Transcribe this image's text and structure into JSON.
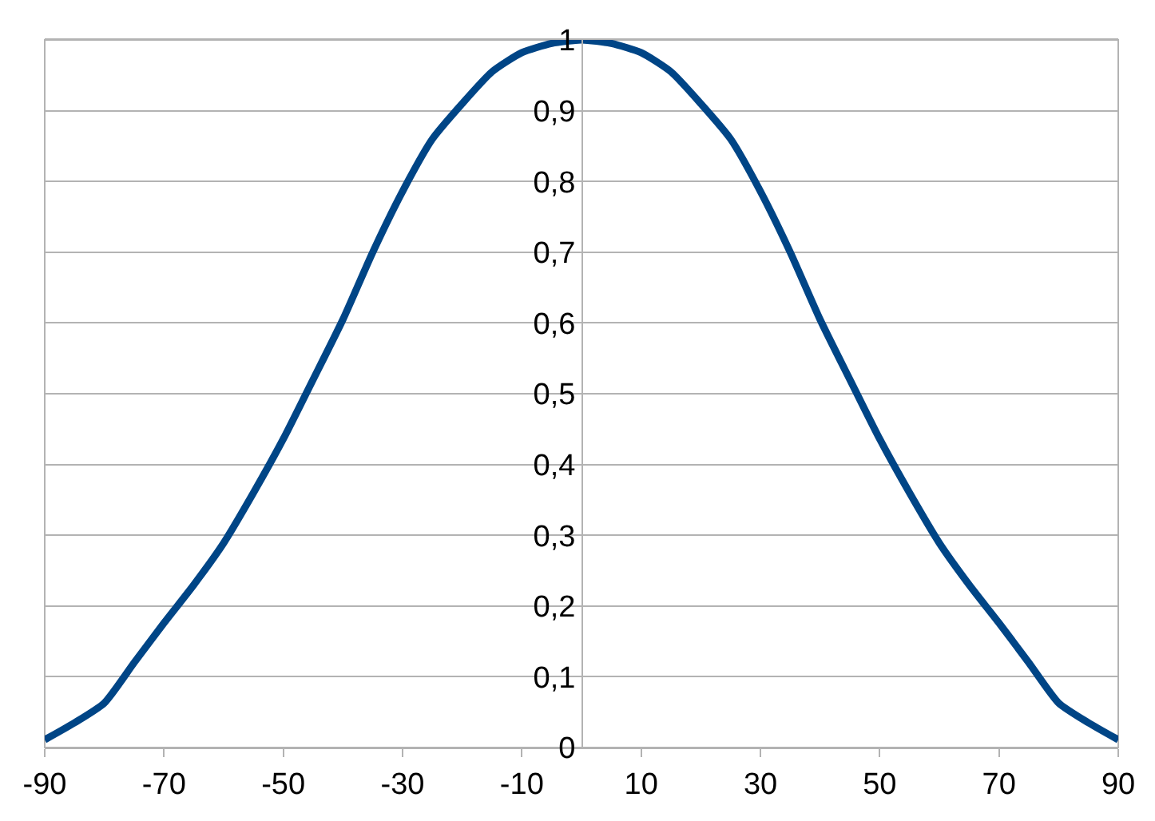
{
  "chart_data": {
    "type": "line",
    "x": [
      -90,
      -85,
      -80,
      -75,
      -70,
      -65,
      -60,
      -55,
      -50,
      -45,
      -40,
      -35,
      -30,
      -25,
      -20,
      -15,
      -10,
      -5,
      0,
      5,
      10,
      15,
      20,
      25,
      30,
      35,
      40,
      45,
      50,
      55,
      60,
      65,
      70,
      75,
      80,
      85,
      90
    ],
    "series": [
      {
        "color": "#004586",
        "values": [
          0.011,
          0.035,
          0.063,
          0.12,
          0.176,
          0.23,
          0.289,
          0.36,
          0.436,
          0.52,
          0.605,
          0.7,
          0.786,
          0.86,
          0.91,
          0.955,
          0.982,
          0.995,
          1.0,
          0.995,
          0.982,
          0.955,
          0.91,
          0.86,
          0.786,
          0.7,
          0.605,
          0.52,
          0.436,
          0.36,
          0.289,
          0.23,
          0.176,
          0.12,
          0.063,
          0.035,
          0.011
        ]
      }
    ],
    "xlim": [
      -90,
      90
    ],
    "xticks": [
      -90,
      -70,
      -50,
      -30,
      -10,
      10,
      30,
      50,
      70,
      90
    ],
    "ylim": [
      0,
      1
    ],
    "yticks": [
      0,
      {
        "value": 0.1,
        "label": "0,1"
      },
      {
        "value": 0.2,
        "label": "0,2"
      },
      {
        "value": 0.3,
        "label": "0,3"
      },
      {
        "value": 0.4,
        "label": "0,4"
      },
      {
        "value": 0.5,
        "label": "0,5"
      },
      {
        "value": 0.6,
        "label": "0,6"
      },
      {
        "value": 0.7,
        "label": "0,7"
      },
      {
        "value": 0.8,
        "label": "0,8"
      },
      {
        "value": 0.9,
        "label": "0,9"
      },
      1
    ],
    "grid": "y",
    "marker": "none",
    "line_style": "solid"
  }
}
